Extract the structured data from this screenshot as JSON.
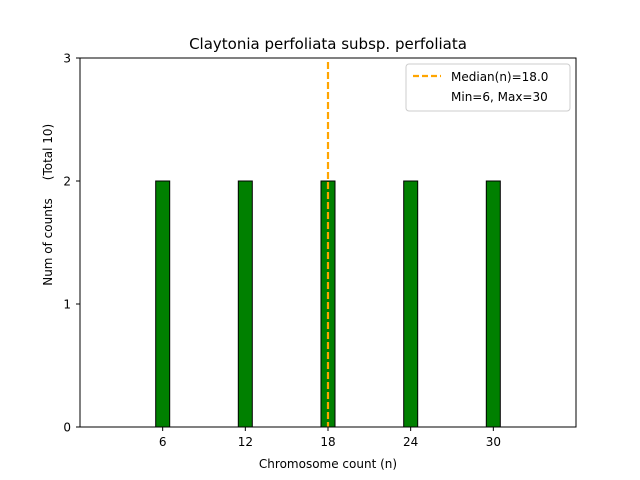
{
  "chart_data": {
    "type": "bar",
    "title": "Claytonia perfoliata subsp. perfoliata",
    "xlabel": "Chromosome count (n)",
    "ylabel": "Num of counts",
    "ylabel_note": "(Total 10)",
    "x": [
      6,
      12,
      18,
      24,
      30
    ],
    "values": [
      2,
      2,
      2,
      2,
      2
    ],
    "xticks": [
      "6",
      "12",
      "18",
      "24",
      "30"
    ],
    "yticks": [
      "0",
      "1",
      "2",
      "3"
    ],
    "xlim": [
      0,
      36
    ],
    "ylim": [
      0,
      3
    ],
    "bar_color": "#008000",
    "median": {
      "value": 18.0,
      "label": "Median(n)=18.0",
      "color": "#FFA500"
    },
    "legend": {
      "placement": "top-right",
      "entries": [
        "Median(n)=18.0",
        "Min=6, Max=30"
      ]
    }
  }
}
